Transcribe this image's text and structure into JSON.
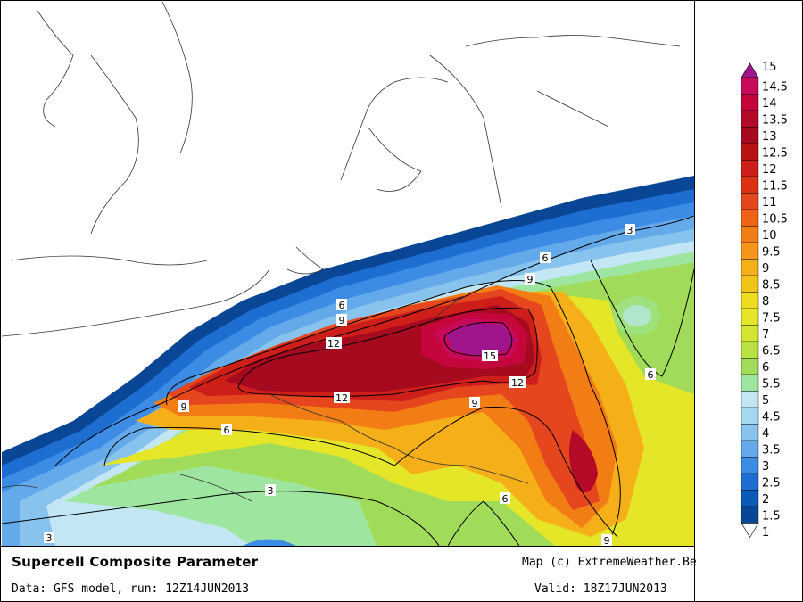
{
  "title": "Supercell Composite Parameter",
  "credit": "Map (c) ExtremeWeather.Be",
  "data_line": "Data: GFS model, run: 12Z14JUN2013",
  "valid_line": "Valid: 18Z17JUN2013",
  "legend": {
    "levels": [
      "15",
      "14.5",
      "14",
      "13.5",
      "13",
      "12.5",
      "12",
      "11.5",
      "11",
      "10.5",
      "10",
      "9.5",
      "9",
      "8.5",
      "8",
      "7.5",
      "7",
      "6.5",
      "6",
      "5.5",
      "5",
      "4.5",
      "4",
      "3.5",
      "3",
      "2.5",
      "2",
      "1.5",
      "1"
    ],
    "colors": [
      "#a0148c",
      "#c80a5a",
      "#c4063c",
      "#b40a28",
      "#a50a1e",
      "#b91414",
      "#cd1e1a",
      "#dc3214",
      "#e6461e",
      "#ef6414",
      "#f27d14",
      "#f59619",
      "#f5af19",
      "#f0c319",
      "#f0dc1e",
      "#e6e628",
      "#d2e632",
      "#b9e141",
      "#a0dc5a",
      "#9ee6a0",
      "#c3e6f5",
      "#a5d7f0",
      "#87c3ec",
      "#64aaeb",
      "#3c8ce6",
      "#1e6ed2",
      "#0a5ab9",
      "#0a4696",
      "#ffffff"
    ]
  },
  "contour_labels": [
    {
      "text": "3",
      "id": "north"
    },
    {
      "text": "6",
      "id": "north"
    },
    {
      "text": "6",
      "id": "west"
    },
    {
      "text": "9",
      "id": "north"
    },
    {
      "text": "9",
      "id": "west"
    },
    {
      "text": "9",
      "id": "southwest"
    },
    {
      "text": "12",
      "id": "north"
    },
    {
      "text": "12",
      "id": "south"
    },
    {
      "text": "12",
      "id": "east"
    },
    {
      "text": "15",
      "id": "core"
    },
    {
      "text": "6",
      "id": "southwest"
    },
    {
      "text": "6",
      "id": "east"
    },
    {
      "text": "9",
      "id": "center"
    },
    {
      "text": "6",
      "id": "south"
    },
    {
      "text": "3",
      "id": "south"
    },
    {
      "text": "3",
      "id": "southwest"
    },
    {
      "text": "9",
      "id": "bottom"
    }
  ]
}
